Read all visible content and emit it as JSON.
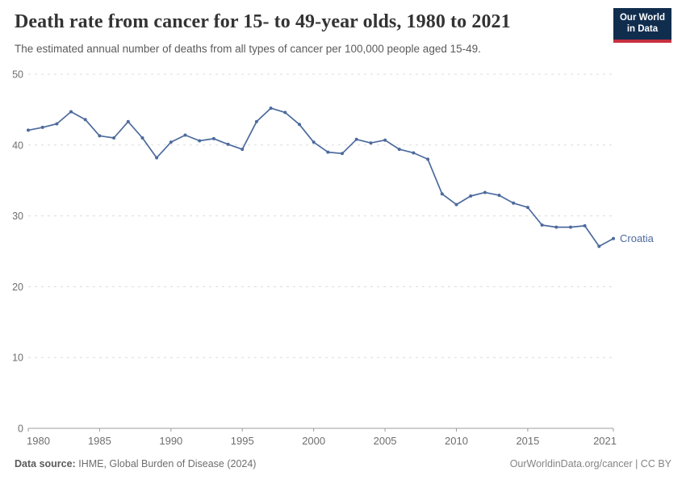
{
  "header": {
    "title": "Death rate from cancer for 15- to 49-year olds, 1980 to 2021",
    "subtitle": "The estimated annual number of deaths from all types of cancer per 100,000 people aged 15-49.",
    "logo": {
      "line1": "Our World",
      "line2": "in Data",
      "bg_color": "#102d4e",
      "accent_color": "#c5303e"
    }
  },
  "chart_data": {
    "type": "line",
    "title": "Death rate from cancer for 15- to 49-year olds, 1980 to 2021",
    "xlabel": "",
    "ylabel": "",
    "xlim": [
      1980,
      2021
    ],
    "ylim": [
      0,
      50
    ],
    "x_ticks": [
      1980,
      1985,
      1990,
      1995,
      2000,
      2005,
      2010,
      2015,
      2021
    ],
    "y_ticks": [
      0,
      10,
      20,
      30,
      40,
      50
    ],
    "grid": "horizontal-dashed",
    "legend_position": "end-of-line-label",
    "x": [
      1980,
      1981,
      1982,
      1983,
      1984,
      1985,
      1986,
      1987,
      1988,
      1989,
      1990,
      1991,
      1992,
      1993,
      1994,
      1995,
      1996,
      1997,
      1998,
      1999,
      2000,
      2001,
      2002,
      2003,
      2004,
      2005,
      2006,
      2007,
      2008,
      2009,
      2010,
      2011,
      2012,
      2013,
      2014,
      2015,
      2016,
      2017,
      2018,
      2019,
      2020,
      2021
    ],
    "series": [
      {
        "name": "Croatia",
        "color": "#4c6a9c",
        "values": [
          42.1,
          42.5,
          43.0,
          44.7,
          43.6,
          41.3,
          41.0,
          43.3,
          41.0,
          38.2,
          40.4,
          41.4,
          40.6,
          40.9,
          40.1,
          39.4,
          43.3,
          45.2,
          44.6,
          42.9,
          40.4,
          39.0,
          38.8,
          40.8,
          40.3,
          40.7,
          39.4,
          38.9,
          38.0,
          33.1,
          31.6,
          32.8,
          33.3,
          32.9,
          31.8,
          31.2,
          28.7,
          28.4,
          28.4,
          28.6,
          25.7,
          26.8
        ]
      }
    ]
  },
  "footer": {
    "datasource_label": "Data source:",
    "datasource_value": "IHME, Global Burden of Disease (2024)",
    "credit": "OurWorldinData.org/cancer | CC BY"
  }
}
